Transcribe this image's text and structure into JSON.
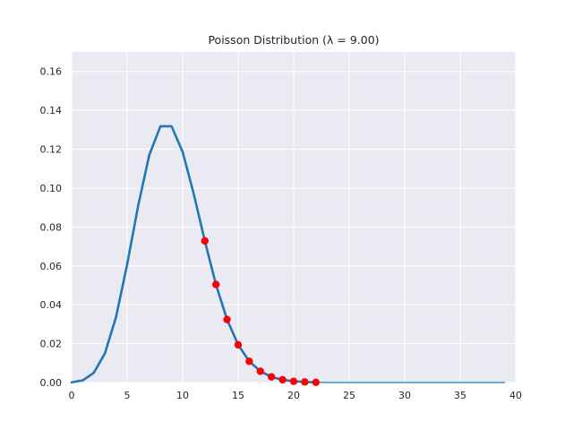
{
  "chart_data": {
    "type": "line",
    "title": "Poisson Distribution (λ = 9.00)",
    "xlabel": "",
    "ylabel": "",
    "xlim": [
      0,
      40
    ],
    "ylim": [
      0,
      0.17
    ],
    "xticks": [
      0,
      5,
      10,
      15,
      20,
      25,
      30,
      35,
      40
    ],
    "xtick_labels": [
      "0",
      "5",
      "10",
      "15",
      "20",
      "25",
      "30",
      "35",
      "40"
    ],
    "yticks": [
      0,
      0.02,
      0.04,
      0.06,
      0.08,
      0.1,
      0.12,
      0.14,
      0.16
    ],
    "ytick_labels": [
      "0.00",
      "0.02",
      "0.04",
      "0.06",
      "0.08",
      "0.10",
      "0.12",
      "0.14",
      "0.16"
    ],
    "grid": true,
    "colors": {
      "background": "#eaeaf2",
      "grid": "#ffffff",
      "line": "#1f77b4",
      "marker": "#ff0000"
    },
    "series": [
      {
        "style": "line-thick",
        "x": [
          0,
          1,
          2,
          3,
          4,
          5,
          6,
          7,
          8,
          9,
          10,
          11,
          12,
          13,
          14,
          15,
          16,
          17,
          18,
          19,
          20,
          21,
          22
        ],
        "y": [
          0.0001,
          0.0011,
          0.005,
          0.015,
          0.0337,
          0.0607,
          0.0911,
          0.1171,
          0.1318,
          0.1318,
          0.1186,
          0.097,
          0.0728,
          0.0504,
          0.0324,
          0.0194,
          0.0109,
          0.0058,
          0.0029,
          0.0014,
          0.0006,
          0.0003,
          0.0001
        ]
      },
      {
        "style": "line-thin",
        "x": [
          22,
          23,
          24,
          25,
          26,
          27,
          28,
          29,
          30,
          31,
          32,
          33,
          34,
          35,
          36,
          37,
          38,
          39
        ],
        "y": [
          0.0001,
          0.0,
          0.0,
          0.0,
          0.0,
          0.0,
          0.0,
          0.0,
          0.0,
          0.0,
          0.0,
          0.0,
          0.0,
          0.0,
          0.0,
          0.0,
          0.0,
          0.0
        ]
      },
      {
        "style": "markers",
        "x": [
          12,
          13,
          14,
          15,
          16,
          17,
          18,
          19,
          20,
          21,
          22
        ],
        "y": [
          0.0728,
          0.0504,
          0.0324,
          0.0194,
          0.0109,
          0.0058,
          0.0029,
          0.0014,
          0.0006,
          0.0003,
          0.0001
        ]
      }
    ]
  }
}
